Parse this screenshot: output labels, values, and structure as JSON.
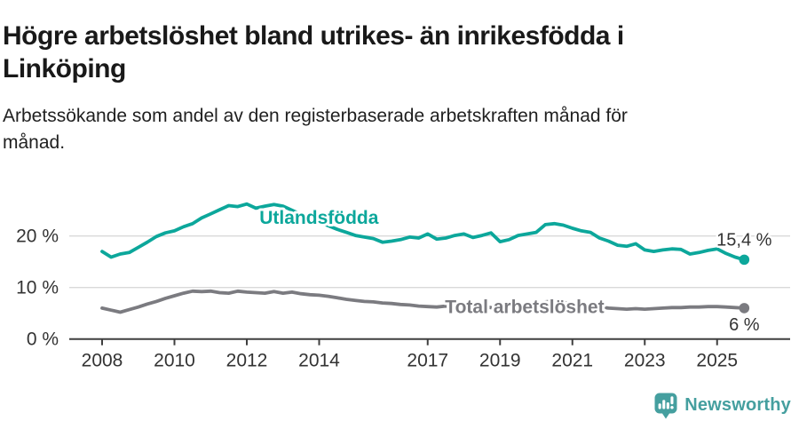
{
  "header": {
    "title_lines": [
      "Högre arbetslöshet bland utrikes- än inrikesfödda i",
      "Linköping"
    ],
    "subtitle_lines": [
      "Arbetssökande som andel av den registerbaserade arbetskraften månad för",
      "månad."
    ]
  },
  "chart_data": {
    "type": "line",
    "title": "Högre arbetslöshet bland utrikes- än inrikesfödda i Linköping",
    "subtitle": "Arbetssökande som andel av den registerbaserade arbetskraften månad för månad.",
    "unit": "%",
    "grid": true,
    "y_axis": {
      "range": [
        0,
        29
      ],
      "gridline_values": [
        10,
        20
      ],
      "ticks": [
        {
          "value": 0,
          "label": "0 %"
        },
        {
          "value": 10,
          "label": "10 %"
        },
        {
          "value": 20,
          "label": "20 %"
        }
      ]
    },
    "x_axis": {
      "range_years": [
        2007.1,
        2026.1
      ],
      "tick_years": [
        2008,
        2010,
        2012,
        2014,
        2017,
        2019,
        2021,
        2023,
        2025
      ],
      "tick_labels": [
        "2008",
        "2010",
        "2012",
        "2014",
        "2017",
        "2019",
        "2021",
        "2023",
        "2025"
      ]
    },
    "series": [
      {
        "name": "Utlandsfödda",
        "color": "#0ca79b",
        "start_year": 2008,
        "interval_months": 3,
        "values": [
          17.0,
          15.9,
          16.5,
          16.8,
          17.8,
          18.8,
          19.9,
          20.6,
          21.0,
          21.8,
          22.4,
          23.5,
          24.3,
          25.1,
          25.9,
          25.7,
          26.2,
          25.4,
          25.8,
          26.1,
          25.8,
          25.0,
          24.2,
          23.4,
          22.7,
          22.0,
          21.3,
          20.7,
          20.1,
          19.8,
          19.5,
          18.8,
          19.0,
          19.3,
          19.8,
          19.6,
          20.4,
          19.4,
          19.6,
          20.1,
          20.4,
          19.7,
          20.1,
          20.6,
          18.9,
          19.3,
          20.1,
          20.4,
          20.7,
          22.2,
          22.4,
          22.1,
          21.5,
          21.0,
          20.7,
          19.6,
          19.0,
          18.2,
          18.0,
          18.5,
          17.3,
          17.0,
          17.3,
          17.5,
          17.4,
          16.5,
          16.8,
          17.2,
          17.5,
          16.6,
          15.9,
          15.4
        ],
        "end_label": "15,4 %",
        "end_label_side": "above",
        "name_label_pos": {
          "year": 2012.35,
          "pct": 22.4
        }
      },
      {
        "name": "Total arbetslöshet",
        "color": "#7b7b80",
        "start_year": 2008,
        "interval_months": 3,
        "values": [
          6.0,
          5.6,
          5.2,
          5.7,
          6.2,
          6.8,
          7.3,
          7.9,
          8.4,
          8.9,
          9.3,
          9.2,
          9.3,
          9.0,
          8.9,
          9.3,
          9.1,
          9.0,
          8.9,
          9.2,
          8.9,
          9.1,
          8.8,
          8.6,
          8.5,
          8.3,
          8.0,
          7.7,
          7.5,
          7.3,
          7.2,
          7.0,
          6.9,
          6.7,
          6.6,
          6.4,
          6.3,
          6.2,
          6.4,
          6.2,
          6.1,
          6.2,
          6.3,
          6.1,
          6.0,
          6.1,
          6.3,
          6.2,
          6.4,
          7.2,
          7.4,
          7.1,
          6.9,
          6.6,
          6.4,
          6.2,
          6.0,
          5.9,
          5.8,
          5.9,
          5.8,
          5.9,
          6.0,
          6.1,
          6.1,
          6.2,
          6.2,
          6.3,
          6.3,
          6.2,
          6.1,
          6.0
        ],
        "end_label": "6 %",
        "end_label_side": "below",
        "name_label_pos": {
          "year": 2017.48,
          "pct": 5.0
        }
      }
    ],
    "colors": {
      "grid": "#d9d9d9",
      "axis": "#3f3f3f",
      "axis_text": "#333333",
      "value_label_text": "#333333"
    }
  },
  "footer": {
    "brand": "Newsworthy",
    "brand_color": "#459f9f",
    "logo_icon": "bar-chart-speech-bubble"
  }
}
